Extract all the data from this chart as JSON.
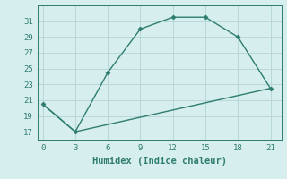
{
  "xlabel": "Humidex (Indice chaleur)",
  "bg_color": "#d6eeee",
  "grid_color": "#b8d8d8",
  "line_color": "#2e7d6e",
  "line1_x": [
    0,
    3,
    6,
    9,
    12,
    15,
    18,
    21
  ],
  "line1_y": [
    20.5,
    17.0,
    24.5,
    30.0,
    31.5,
    31.5,
    29.0,
    22.5
  ],
  "line2_x": [
    0,
    3,
    21
  ],
  "line2_y": [
    20.5,
    17.0,
    22.5
  ],
  "xlim": [
    -0.5,
    22
  ],
  "ylim": [
    16,
    33
  ],
  "xticks": [
    0,
    3,
    6,
    9,
    12,
    15,
    18,
    21
  ],
  "yticks": [
    17,
    19,
    21,
    23,
    25,
    27,
    29,
    31
  ],
  "marker": "D",
  "markersize": 2.5,
  "linewidth": 1.0,
  "font_family": "monospace",
  "xlabel_fontsize": 7.5,
  "tick_fontsize": 6.5
}
